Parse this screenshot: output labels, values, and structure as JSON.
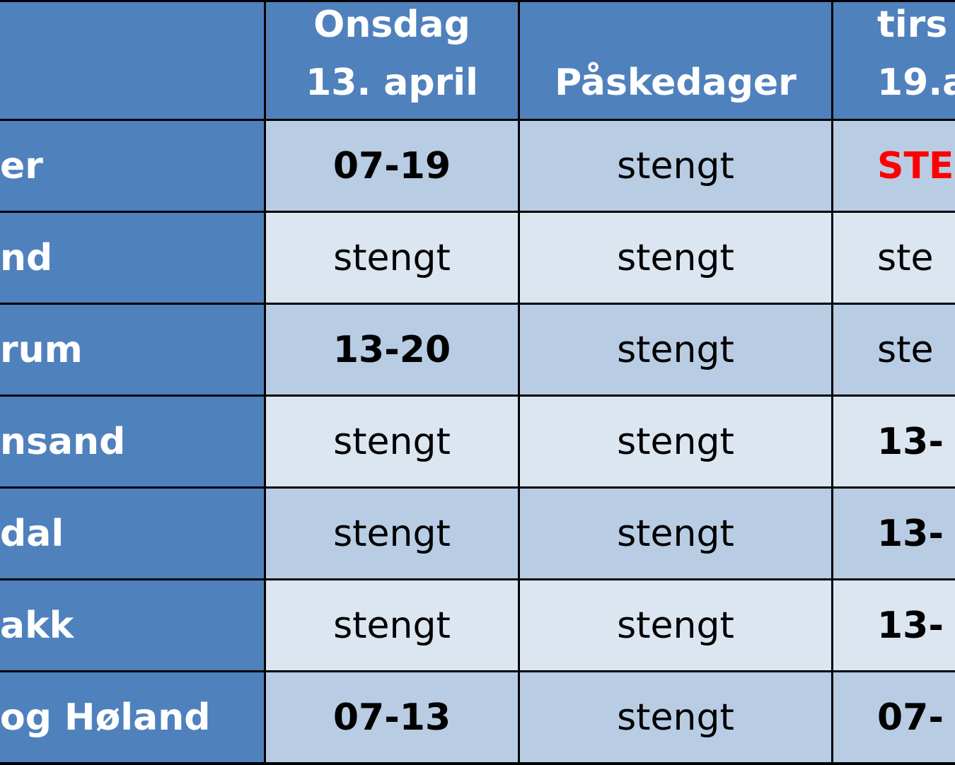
{
  "header": {
    "cells": [
      [
        "Onsdag",
        "13. april"
      ],
      [
        "Påskedager"
      ],
      [
        "tirs",
        "19.a"
      ]
    ]
  },
  "rows": [
    [
      "er",
      "07-19",
      "stengt",
      "STE"
    ],
    [
      "nd",
      "stengt",
      "stengt",
      "ste"
    ],
    [
      "rum",
      "13-20",
      "stengt",
      "ste"
    ],
    [
      "nsand",
      "stengt",
      "stengt",
      "13-"
    ],
    [
      "dal",
      "stengt",
      "stengt",
      "13-"
    ],
    [
      "akk",
      "stengt",
      "stengt",
      "13-"
    ],
    [
      "og Høland",
      "07-13",
      "stengt",
      "07-"
    ]
  ]
}
